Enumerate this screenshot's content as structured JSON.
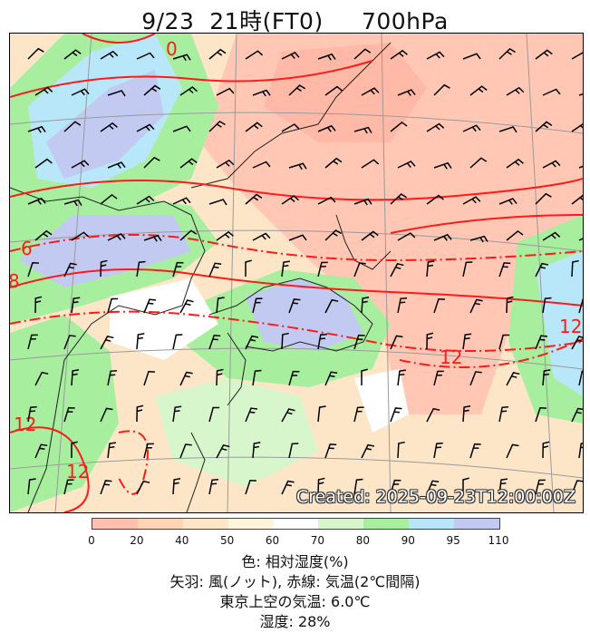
{
  "title": {
    "date": "9/23",
    "time": "21時(FT0)",
    "level": "700hPa"
  },
  "map": {
    "created": "Created: 2025-09-23T12:00:00Z",
    "isotherm_labels": [
      {
        "text": "0"
      },
      {
        "text": "6"
      },
      {
        "text": "8"
      },
      {
        "text": "12"
      },
      {
        "text": "12"
      },
      {
        "text": "12"
      },
      {
        "text": "12"
      }
    ]
  },
  "colorbar": {
    "ticks": [
      "0",
      "20",
      "40",
      "50",
      "60",
      "70",
      "80",
      "90",
      "95",
      "110"
    ],
    "colors": [
      "#ffc0b0",
      "#ffd5b5",
      "#ffe6c6",
      "#fff4dc",
      "#ffffff",
      "#d8f6cc",
      "#a7ef9f",
      "#b7e7f8",
      "#c3caf2"
    ]
  },
  "legend": {
    "line1": "色: 相対湿度(%)",
    "line2": "矢羽: 風(ノット),  赤線: 気温(2℃間隔)",
    "line3": "東京上空の気温: 6.0℃",
    "line4": "湿度: 28%"
  },
  "colors": {
    "isotherm": "#ff1a1a",
    "coast": "#222222",
    "grid": "#9a9a9a",
    "barb": "#000000"
  }
}
